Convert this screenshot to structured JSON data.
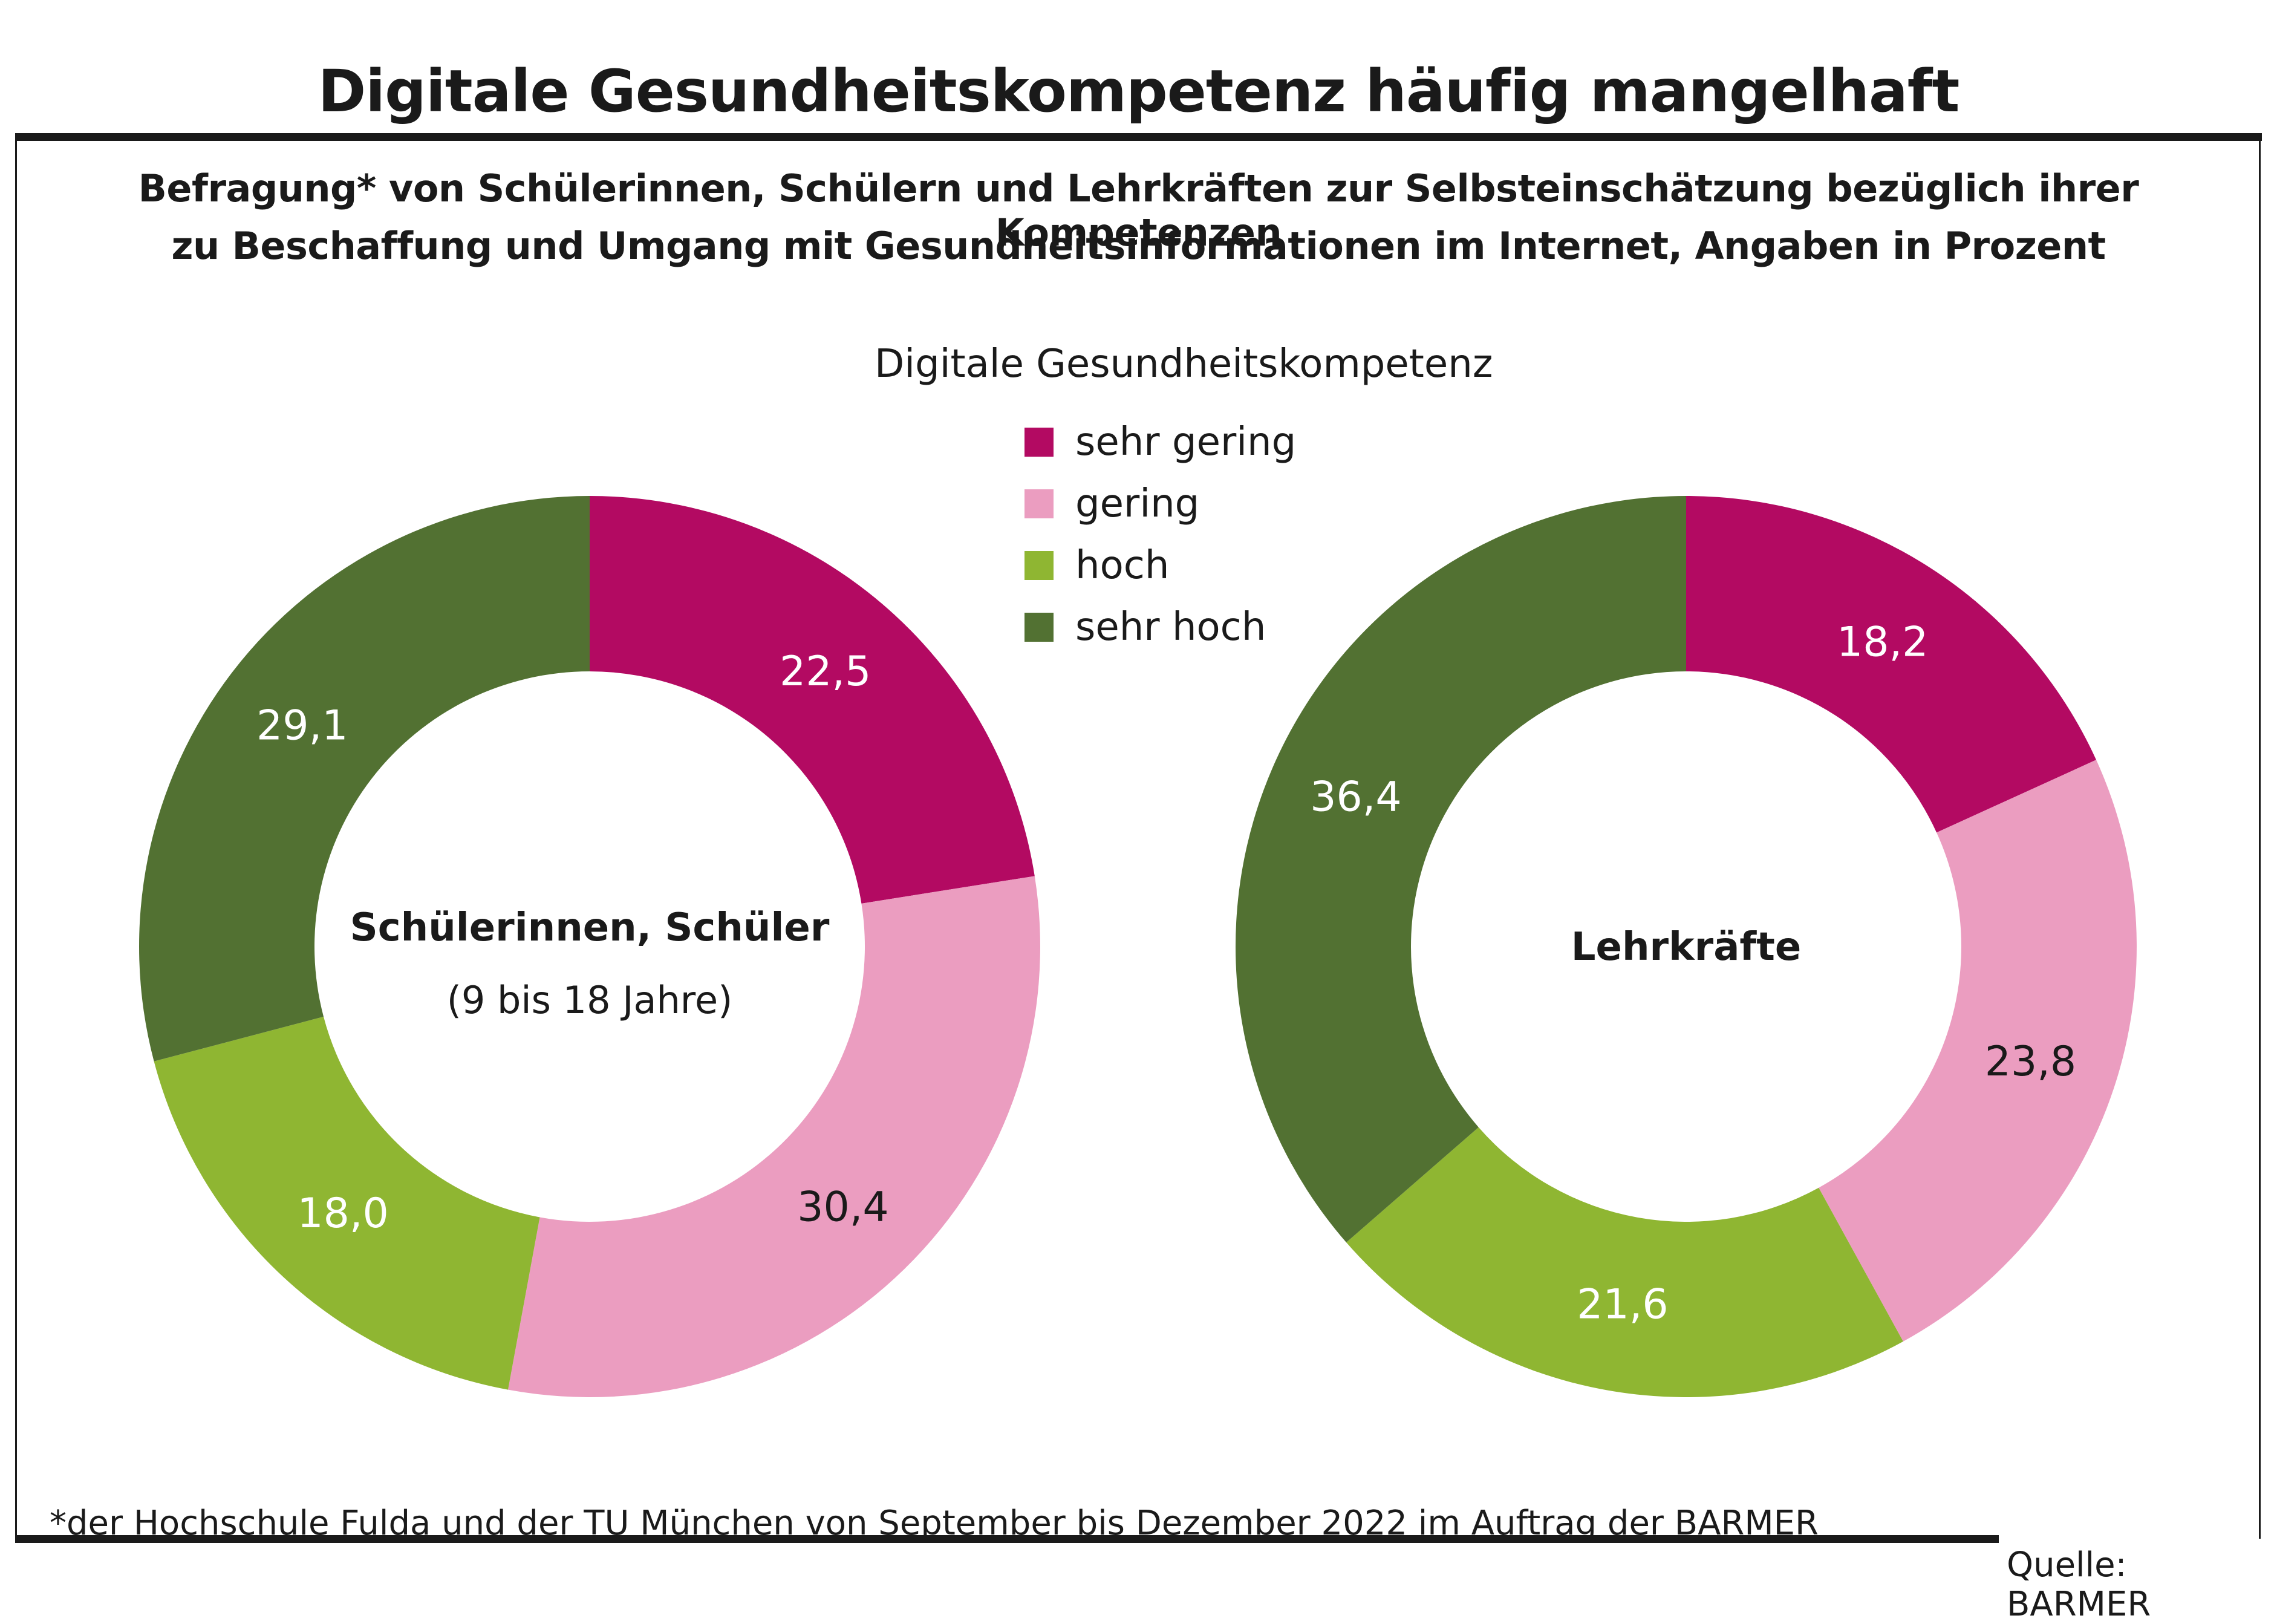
{
  "title": "Digitale Gesundheitskompetenz häufig mangelhaft",
  "subtitle_lines": [
    "Befragung* von Schülerinnen, Schülern und Lehrkräften zur Selbsteinschätzung bezüglich ihrer Kompetenzen",
    "zu Beschaffung und Umgang mit Gesundheitsinformationen im Internet, Angaben in Prozent"
  ],
  "legend": {
    "title": "Digitale Gesundheitskompetenz",
    "items": [
      {
        "label": "sehr gering",
        "color": "#b30a62"
      },
      {
        "label": "gering",
        "color": "#eb9dc0"
      },
      {
        "label": "hoch",
        "color": "#8fb632"
      },
      {
        "label": "sehr hoch",
        "color": "#527132"
      }
    ]
  },
  "footnote": "*der Hochschule Fulda und der TU München von September bis Dezember 2022 im Auftrag der BARMER",
  "source": "Quelle: BARMER",
  "chart_data": [
    {
      "type": "pie",
      "variant": "donut",
      "title": "Schülerinnen, Schüler",
      "subtitle": "(9 bis 18 Jahre)",
      "categories": [
        "sehr gering",
        "gering",
        "hoch",
        "sehr hoch"
      ],
      "values": [
        22.5,
        30.4,
        18.0,
        29.1
      ],
      "value_labels": [
        "22,5",
        "30,4",
        "18,0",
        "29,1"
      ],
      "label_colors": [
        "#ffffff",
        "#1a1a1a",
        "#ffffff",
        "#ffffff"
      ],
      "colors": [
        "#b30a62",
        "#eb9dc0",
        "#8fb632",
        "#527132"
      ],
      "unit": "%",
      "start": "12 o'clock, clockwise"
    },
    {
      "type": "pie",
      "variant": "donut",
      "title": "Lehrkräfte",
      "subtitle": "",
      "categories": [
        "sehr gering",
        "gering",
        "hoch",
        "sehr hoch"
      ],
      "values": [
        18.2,
        23.8,
        21.6,
        36.4
      ],
      "value_labels": [
        "18,2",
        "23,8",
        "21,6",
        "36,4"
      ],
      "label_colors": [
        "#ffffff",
        "#1a1a1a",
        "#ffffff",
        "#ffffff"
      ],
      "colors": [
        "#b30a62",
        "#eb9dc0",
        "#8fb632",
        "#527132"
      ],
      "unit": "%",
      "start": "12 o'clock, clockwise"
    }
  ]
}
